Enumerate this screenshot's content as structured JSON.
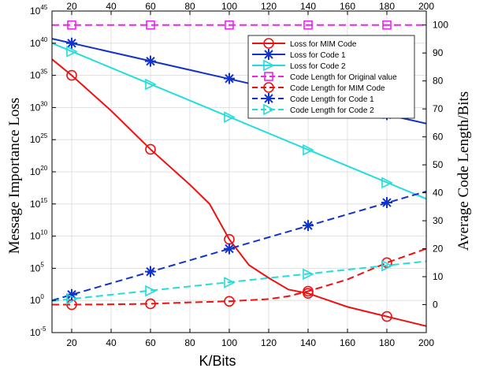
{
  "chart_data": {
    "type": "line",
    "x": [
      20,
      60,
      100,
      140,
      180
    ],
    "xlabel": "K/Bits",
    "ylabel_left": "Message Importance Loss",
    "ylabel_right": "Average Code Length/Bits",
    "xlim": [
      10,
      200
    ],
    "xticks": [
      20,
      40,
      60,
      80,
      100,
      120,
      140,
      160,
      180,
      200
    ],
    "left_axis": {
      "scale": "log",
      "lim_exp": [
        -5,
        45
      ],
      "tick_exponents": [
        -5,
        0,
        5,
        10,
        15,
        20,
        25,
        30,
        35,
        40,
        45
      ]
    },
    "right_axis": {
      "scale": "linear",
      "lim": [
        -10,
        105
      ],
      "ticks": [
        0,
        10,
        20,
        30,
        40,
        50,
        60,
        70,
        80,
        90,
        100
      ]
    },
    "grid": true,
    "legend_position": "top-right",
    "series": [
      {
        "name": "Loss for MIM Code",
        "axis": "left",
        "color": "#ee1111",
        "dash": "solid",
        "marker": "circle",
        "line_x": [
          10,
          20,
          40,
          60,
          80,
          90,
          100,
          110,
          120,
          130,
          140,
          160,
          180,
          200
        ],
        "line_logy": [
          37.5,
          35,
          29.5,
          23.5,
          18,
          15,
          9.5,
          5.5,
          3.5,
          1.7,
          1.1,
          -1,
          -2.5,
          -4
        ],
        "marker_x": [
          20,
          60,
          100,
          140,
          180
        ],
        "marker_logy": [
          35,
          23.5,
          9.5,
          1.1,
          -2.5
        ]
      },
      {
        "name": "Loss for Code 1",
        "axis": "left",
        "color": "#1133cc",
        "dash": "solid",
        "marker": "star",
        "line_x": [
          10,
          200
        ],
        "line_logy": [
          40.7,
          27.5
        ],
        "marker_x": [
          20,
          60,
          100,
          140,
          180
        ],
        "marker_logy": [
          40,
          37.2,
          34.5,
          31.7,
          28.9
        ]
      },
      {
        "name": "Loss for Code 2",
        "axis": "left",
        "color": "#22dddd",
        "dash": "solid",
        "marker": "triangle-right",
        "line_x": [
          10,
          200
        ],
        "line_logy": [
          40,
          15.8
        ],
        "marker_x": [
          20,
          60,
          100,
          140,
          180
        ],
        "marker_logy": [
          38.7,
          33.6,
          28.5,
          23.4,
          18.3
        ]
      },
      {
        "name": "Code Length for Original value",
        "axis": "right",
        "color": "#ee22ee",
        "dash": "dashed",
        "marker": "square",
        "line_x": [
          10,
          200
        ],
        "line_y": [
          100,
          100
        ],
        "marker_x": [
          20,
          60,
          100,
          140,
          180
        ],
        "marker_y": [
          100,
          100,
          100,
          100,
          100
        ]
      },
      {
        "name": "Code Length for MIM Code",
        "axis": "right",
        "color": "#ee1111",
        "dash": "dashed",
        "marker": "circle",
        "line_x": [
          10,
          20,
          40,
          60,
          80,
          100,
          120,
          130,
          140,
          160,
          180,
          200
        ],
        "line_y": [
          0,
          0,
          0.1,
          0.3,
          0.8,
          1.2,
          2,
          3,
          4.8,
          9,
          15,
          20
        ],
        "marker_x": [
          20,
          60,
          100,
          140,
          180
        ],
        "marker_y": [
          0,
          0.3,
          1.2,
          4.8,
          15
        ]
      },
      {
        "name": "Code Length for Code 1",
        "axis": "right",
        "color": "#1133cc",
        "dash": "dashed",
        "marker": "star",
        "line_x": [
          10,
          200
        ],
        "line_y": [
          1.5,
          40.5
        ],
        "marker_x": [
          20,
          60,
          100,
          140,
          180
        ],
        "marker_y": [
          3.6,
          11.8,
          20,
          28.3,
          36.5
        ]
      },
      {
        "name": "Code Length for Code 2",
        "axis": "right",
        "color": "#22dddd",
        "dash": "dashed",
        "marker": "triangle-right",
        "line_x": [
          10,
          200
        ],
        "line_y": [
          1.3,
          15.5
        ],
        "marker_x": [
          20,
          60,
          100,
          140,
          180
        ],
        "marker_y": [
          2,
          4.9,
          7.9,
          10.9,
          13.9
        ]
      }
    ]
  }
}
